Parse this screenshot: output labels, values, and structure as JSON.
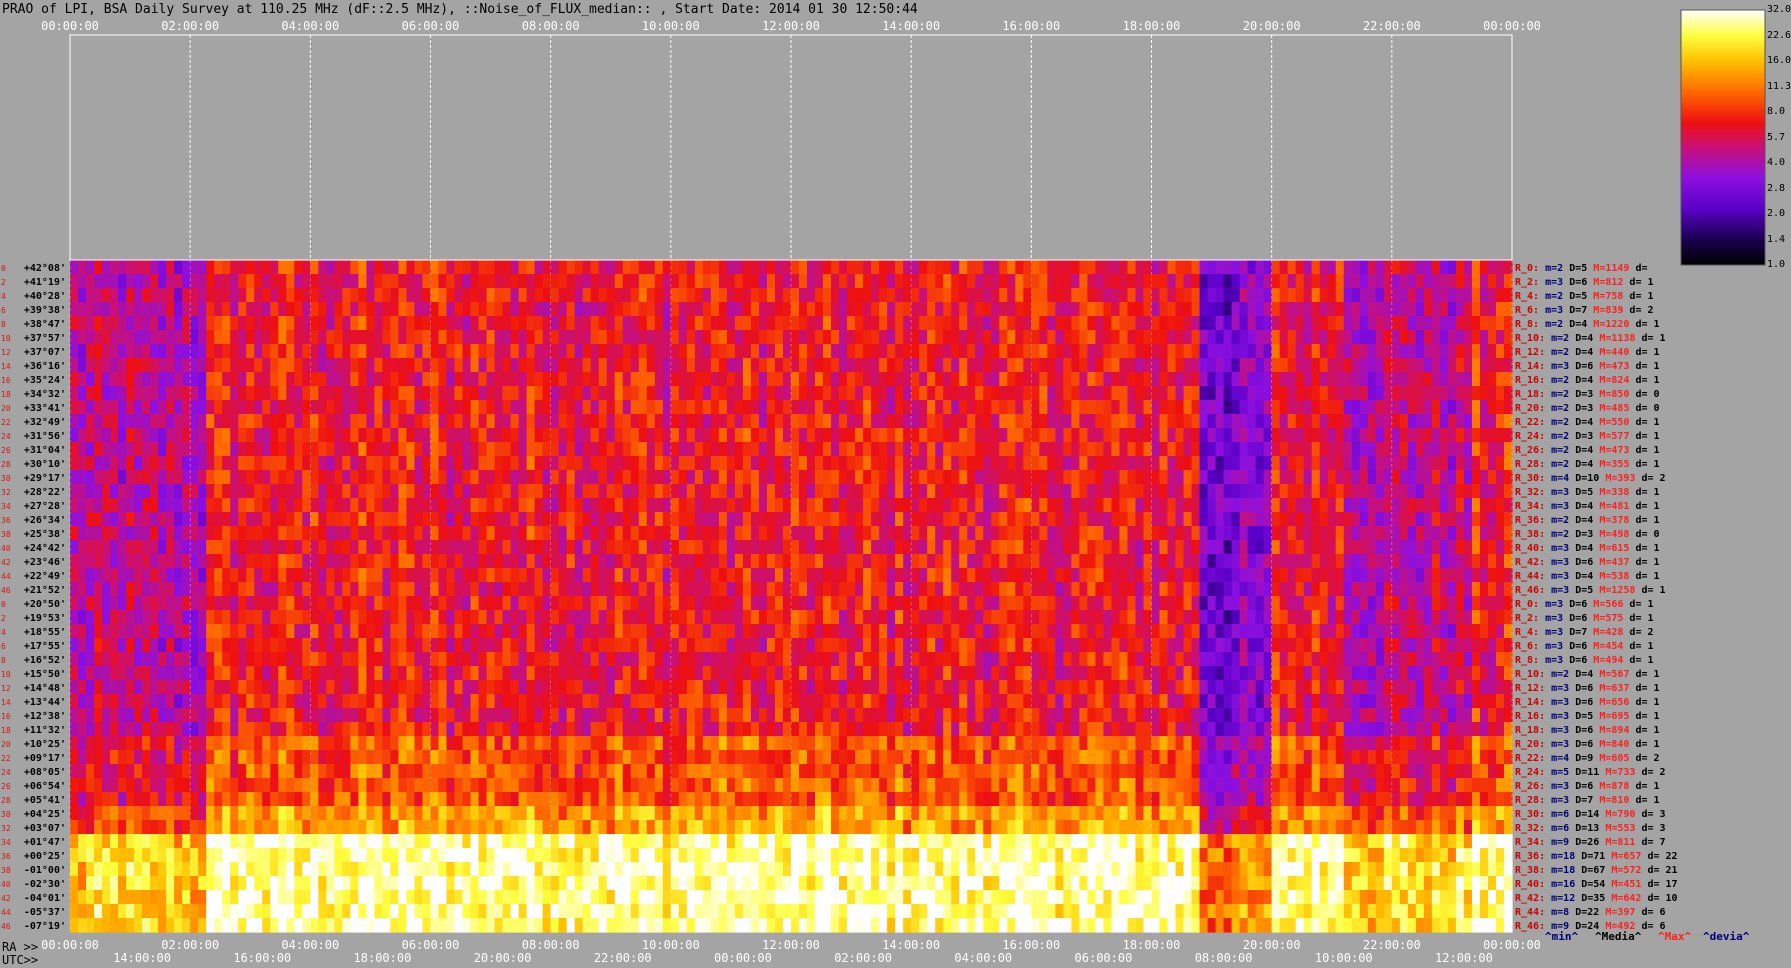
{
  "title": "PRAO of LPI, BSA Daily Survey at 110.25 MHz (dF::2.5 MHz), ::Noise_of_FLUX_median:: , Start Date: 2014 01 30 12:50:44",
  "colors": {
    "background": "#a4a4a4",
    "grid": "#ffffff",
    "dec_label": "#000000",
    "row_index": "#e01010",
    "stat_R": "#d00000",
    "stat_m": "#00007a",
    "stat_M": "#ff2020",
    "stat_D": "#000000"
  },
  "chart_data": {
    "type": "heatmap",
    "colormap": "heat (black-purple-red-yellow-white)",
    "x_axis_top": {
      "label": "",
      "ticks": [
        "00:00:00",
        "02:00:00",
        "04:00:00",
        "06:00:00",
        "08:00:00",
        "10:00:00",
        "12:00:00",
        "14:00:00",
        "16:00:00",
        "18:00:00",
        "20:00:00",
        "22:00:00",
        "00:00:00"
      ]
    },
    "x_axis_ra": {
      "label": "RA >>",
      "ticks": [
        "00:00:00",
        "02:00:00",
        "04:00:00",
        "06:00:00",
        "08:00:00",
        "10:00:00",
        "12:00:00",
        "14:00:00",
        "16:00:00",
        "18:00:00",
        "20:00:00",
        "22:00:00",
        "00:00:00"
      ]
    },
    "x_axis_utc": {
      "label": "UTC>>",
      "ticks": [
        "14:00:00",
        "16:00:00",
        "18:00:00",
        "20:00:00",
        "22:00:00",
        "00:00:00",
        "02:00:00",
        "04:00:00",
        "06:00:00",
        "08:00:00",
        "10:00:00",
        "12:00:00"
      ]
    },
    "y_dec_labels": [
      "+42°08'",
      "+41°19'",
      "+40°28'",
      "+39°38'",
      "+38°47'",
      "+37°57'",
      "+37°07'",
      "+36°16'",
      "+35°24'",
      "+34°32'",
      "+33°41'",
      "+32°49'",
      "+31°56'",
      "+31°04'",
      "+30°10'",
      "+29°17'",
      "+28°22'",
      "+27°28'",
      "+26°34'",
      "+25°38'",
      "+24°42'",
      "+23°46'",
      "+22°49'",
      "+21°52'",
      "+20°50'",
      "+19°53'",
      "+18°55'",
      "+17°55'",
      "+16°52'",
      "+15°50'",
      "+14°48'",
      "+13°44'",
      "+12°38'",
      "+11°32'",
      "+10°25'",
      "+09°17'",
      "+08°05'",
      "+06°54'",
      "+05°41'",
      "+04°25'",
      "+03°07'",
      "+01°47'",
      "+00°25'",
      "-01°00'",
      "-02°30'",
      "-04°01'",
      "-05°37'",
      "-07°19'"
    ],
    "row_index_labels": [
      "0",
      "2",
      "4",
      "6",
      "8",
      "10",
      "12",
      "14",
      "16",
      "18",
      "20",
      "22",
      "24",
      "26",
      "28",
      "30",
      "32",
      "34",
      "36",
      "38",
      "40",
      "42",
      "44",
      "46",
      "0",
      "2",
      "4",
      "6",
      "8",
      "10",
      "12",
      "14",
      "16",
      "18",
      "20",
      "22",
      "24",
      "26",
      "28",
      "30",
      "32",
      "34",
      "36",
      "38",
      "40",
      "42",
      "44",
      "46"
    ],
    "colorbar": {
      "ticks": [
        "32.0",
        "22.6",
        "16.0",
        "11.3",
        "8.0",
        "5.7",
        "4.0",
        "2.8",
        "2.0",
        "1.4",
        "1.0"
      ],
      "min": 1.0,
      "max": 32.0,
      "scale": "log"
    },
    "row_stats": [
      {
        "R": "R_0:",
        "m": "m=2",
        "D": "D=5",
        "M": "M=1149",
        "d": "d="
      },
      {
        "R": "R_2:",
        "m": "m=3",
        "D": "D=6",
        "M": "M=812",
        "d": "d= 1"
      },
      {
        "R": "R_4:",
        "m": "m=2",
        "D": "D=5",
        "M": "M=758",
        "d": "d= 1"
      },
      {
        "R": "R_6:",
        "m": "m=3",
        "D": "D=7",
        "M": "M=839",
        "d": "d= 2"
      },
      {
        "R": "R_8:",
        "m": "m=2",
        "D": "D=4",
        "M": "M=1220",
        "d": "d= 1"
      },
      {
        "R": "R_10:",
        "m": "m=2",
        "D": "D=4",
        "M": "M=1138",
        "d": "d= 1"
      },
      {
        "R": "R_12:",
        "m": "m=2",
        "D": "D=4",
        "M": "M=440",
        "d": "d= 1"
      },
      {
        "R": "R_14:",
        "m": "m=3",
        "D": "D=6",
        "M": "M=473",
        "d": "d= 1"
      },
      {
        "R": "R_16:",
        "m": "m=2",
        "D": "D=4",
        "M": "M=824",
        "d": "d= 1"
      },
      {
        "R": "R_18:",
        "m": "m=2",
        "D": "D=3",
        "M": "M=850",
        "d": "d= 0"
      },
      {
        "R": "R_20:",
        "m": "m=2",
        "D": "D=3",
        "M": "M=485",
        "d": "d= 0"
      },
      {
        "R": "R_22:",
        "m": "m=2",
        "D": "D=4",
        "M": "M=550",
        "d": "d= 1"
      },
      {
        "R": "R_24:",
        "m": "m=2",
        "D": "D=3",
        "M": "M=577",
        "d": "d= 1"
      },
      {
        "R": "R_26:",
        "m": "m=2",
        "D": "D=4",
        "M": "M=473",
        "d": "d= 1"
      },
      {
        "R": "R_28:",
        "m": "m=2",
        "D": "D=4",
        "M": "M=355",
        "d": "d= 1"
      },
      {
        "R": "R_30:",
        "m": "m=4",
        "D": "D=10",
        "M": "M=393",
        "d": "d= 2"
      },
      {
        "R": "R_32:",
        "m": "m=3",
        "D": "D=5",
        "M": "M=338",
        "d": "d= 1"
      },
      {
        "R": "R_34:",
        "m": "m=3",
        "D": "D=4",
        "M": "M=481",
        "d": "d= 1"
      },
      {
        "R": "R_36:",
        "m": "m=2",
        "D": "D=4",
        "M": "M=378",
        "d": "d= 1"
      },
      {
        "R": "R_38:",
        "m": "m=2",
        "D": "D=3",
        "M": "M=498",
        "d": "d= 0"
      },
      {
        "R": "R_40:",
        "m": "m=3",
        "D": "D=4",
        "M": "M=615",
        "d": "d= 1"
      },
      {
        "R": "R_42:",
        "m": "m=3",
        "D": "D=6",
        "M": "M=437",
        "d": "d= 1"
      },
      {
        "R": "R_44:",
        "m": "m=3",
        "D": "D=4",
        "M": "M=538",
        "d": "d= 1"
      },
      {
        "R": "R_46:",
        "m": "m=3",
        "D": "D=5",
        "M": "M=1258",
        "d": "d= 1"
      },
      {
        "R": "R_0:",
        "m": "m=3",
        "D": "D=6",
        "M": "M=566",
        "d": "d= 1"
      },
      {
        "R": "R_2:",
        "m": "m=3",
        "D": "D=6",
        "M": "M=575",
        "d": "d= 1"
      },
      {
        "R": "R_4:",
        "m": "m=3",
        "D": "D=7",
        "M": "M=428",
        "d": "d= 2"
      },
      {
        "R": "R_6:",
        "m": "m=3",
        "D": "D=6",
        "M": "M=454",
        "d": "d= 1"
      },
      {
        "R": "R_8:",
        "m": "m=3",
        "D": "D=6",
        "M": "M=494",
        "d": "d= 1"
      },
      {
        "R": "R_10:",
        "m": "m=2",
        "D": "D=4",
        "M": "M=567",
        "d": "d= 1"
      },
      {
        "R": "R_12:",
        "m": "m=3",
        "D": "D=6",
        "M": "M=637",
        "d": "d= 1"
      },
      {
        "R": "R_14:",
        "m": "m=3",
        "D": "D=6",
        "M": "M=656",
        "d": "d= 1"
      },
      {
        "R": "R_16:",
        "m": "m=3",
        "D": "D=5",
        "M": "M=695",
        "d": "d= 1"
      },
      {
        "R": "R_18:",
        "m": "m=3",
        "D": "D=6",
        "M": "M=894",
        "d": "d= 1"
      },
      {
        "R": "R_20:",
        "m": "m=3",
        "D": "D=6",
        "M": "M=840",
        "d": "d= 1"
      },
      {
        "R": "R_22:",
        "m": "m=4",
        "D": "D=9",
        "M": "M=605",
        "d": "d= 2"
      },
      {
        "R": "R_24:",
        "m": "m=5",
        "D": "D=11",
        "M": "M=733",
        "d": "d= 2"
      },
      {
        "R": "R_26:",
        "m": "m=3",
        "D": "D=6",
        "M": "M=878",
        "d": "d= 1"
      },
      {
        "R": "R_28:",
        "m": "m=3",
        "D": "D=7",
        "M": "M=810",
        "d": "d= 1"
      },
      {
        "R": "R_30:",
        "m": "m=6",
        "D": "D=14",
        "M": "M=790",
        "d": "d= 3"
      },
      {
        "R": "R_32:",
        "m": "m=6",
        "D": "D=13",
        "M": "M=553",
        "d": "d= 3"
      },
      {
        "R": "R_34:",
        "m": "m=9",
        "D": "D=26",
        "M": "M=811",
        "d": "d= 7"
      },
      {
        "R": "R_36:",
        "m": "m=18",
        "D": "D=71",
        "M": "M=657",
        "d": "d= 22"
      },
      {
        "R": "R_38:",
        "m": "m=18",
        "D": "D=67",
        "M": "M=572",
        "d": "d= 21"
      },
      {
        "R": "R_40:",
        "m": "m=16",
        "D": "D=54",
        "M": "M=451",
        "d": "d= 17"
      },
      {
        "R": "R_42:",
        "m": "m=12",
        "D": "D=35",
        "M": "M=642",
        "d": "d= 10"
      },
      {
        "R": "R_44:",
        "m": "m=8",
        "D": "D=22",
        "M": "M=397",
        "d": "d= 6"
      },
      {
        "R": "R_46:",
        "m": "m=9",
        "D": "D=24",
        "M": "M=492",
        "d": "d= 6"
      }
    ],
    "stats_legend": [
      "^min^",
      "^Media^",
      "^Max^",
      "^devia^"
    ]
  }
}
